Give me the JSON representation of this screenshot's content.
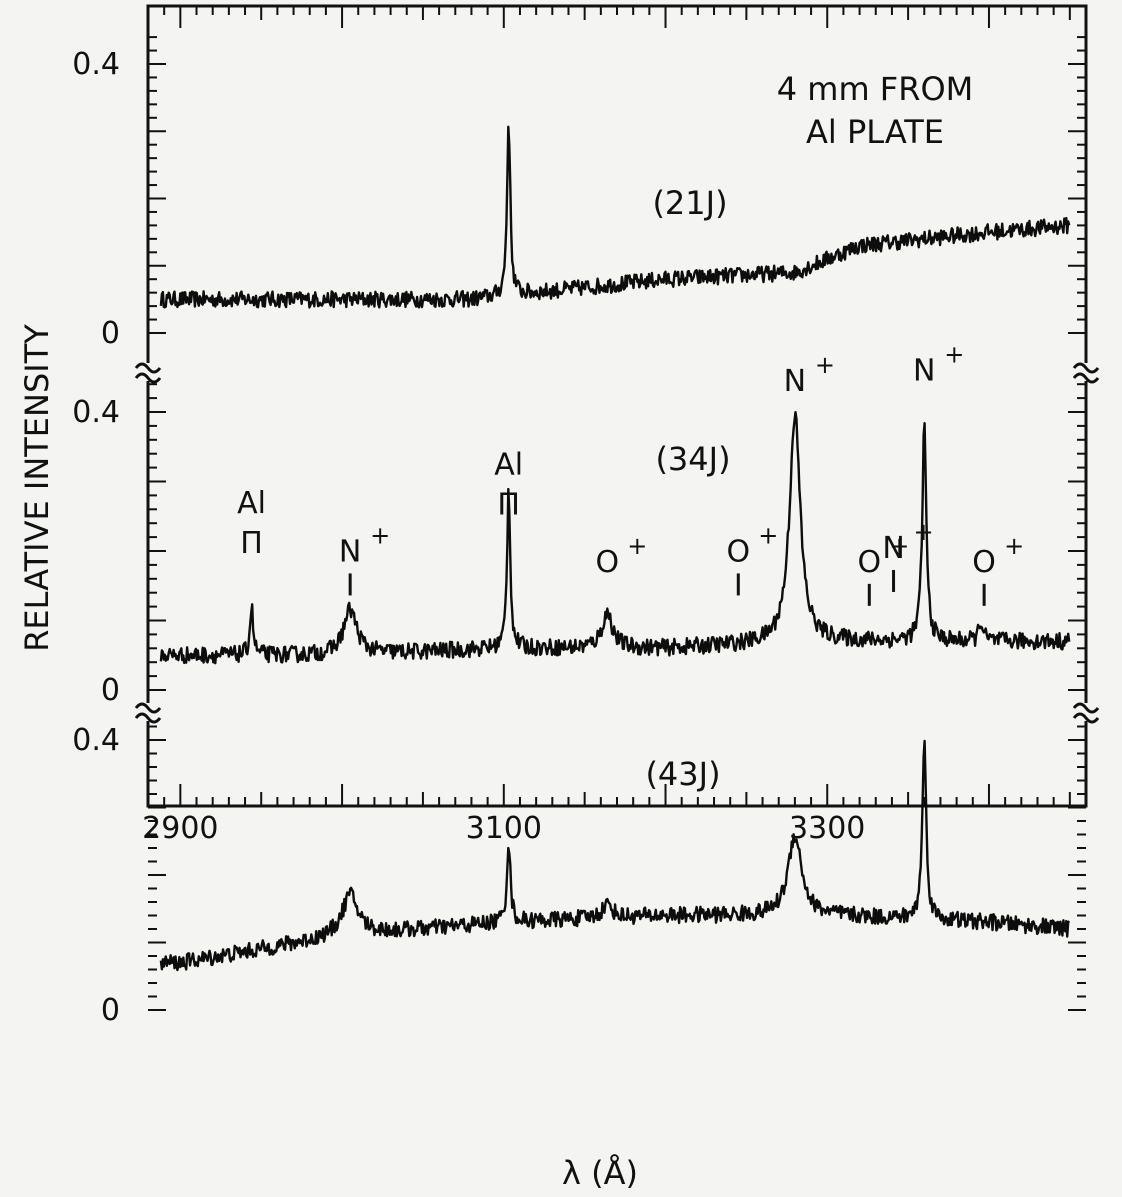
{
  "chart_data": {
    "type": "line",
    "title": "",
    "xlabel": "λ (Å)",
    "ylabel": "RELATIVE INTENSITY",
    "xlim": [
      2880,
      3460
    ],
    "x_ticks": [
      "2900",
      "3100",
      "3300"
    ],
    "x_tick_values": [
      2900,
      3100,
      3300
    ],
    "grid": false,
    "legend": "none",
    "annotation": [
      "4 mm FROM",
      "Al PLATE"
    ],
    "panels": [
      {
        "label": "(21J)",
        "ylim": [
          0,
          0.47
        ],
        "y_ticks": [
          "0",
          "0.4"
        ],
        "y_tick_values": [
          0,
          0.4
        ],
        "baseline": {
          "x": [
            2900,
            3000,
            3080,
            3120,
            3200,
            3280,
            3320,
            3400,
            3450
          ],
          "y": [
            0.05,
            0.05,
            0.05,
            0.06,
            0.08,
            0.09,
            0.13,
            0.15,
            0.16
          ]
        },
        "noise": 0.012,
        "peaks": [
          {
            "x": 3103,
            "height": 0.26,
            "width": 1.2
          }
        ],
        "line_labels": []
      },
      {
        "label": "(34J)",
        "ylim": [
          0,
          0.45
        ],
        "y_ticks": [
          "0",
          "0.4"
        ],
        "y_tick_values": [
          0,
          0.4
        ],
        "baseline": {
          "x": [
            2900,
            3000,
            3100,
            3200,
            3300,
            3400,
            3450
          ],
          "y": [
            0.05,
            0.05,
            0.06,
            0.06,
            0.07,
            0.07,
            0.07
          ]
        },
        "noise": 0.012,
        "peaks": [
          {
            "x": 2944,
            "height": 0.07,
            "width": 1.2
          },
          {
            "x": 3005,
            "height": 0.065,
            "width": 5
          },
          {
            "x": 3103,
            "height": 0.23,
            "width": 1.2
          },
          {
            "x": 3164,
            "height": 0.05,
            "width": 4
          },
          {
            "x": 3280,
            "height": 0.33,
            "width": 4
          },
          {
            "x": 3360,
            "height": 0.31,
            "width": 1.5
          },
          {
            "x": 3395,
            "height": 0.03,
            "width": 1.5
          }
        ],
        "line_labels": [
          {
            "x": 2944,
            "ion": "Al",
            "sup": "",
            "marker": "Π",
            "top": 0.255
          },
          {
            "x": 3005,
            "ion": "N",
            "sup": "+",
            "marker": "|",
            "top": 0.185
          },
          {
            "x": 3103,
            "ion": "Al",
            "sup": "",
            "marker": "Π",
            "top": 0.31
          },
          {
            "x": 3164,
            "ion": "O",
            "sup": "+",
            "marker": "",
            "top": 0.17
          },
          {
            "x": 3245,
            "ion": "O",
            "sup": "+",
            "marker": "|",
            "top": 0.185
          },
          {
            "x": 3280,
            "ion": "N",
            "sup": "+",
            "marker": "",
            "top": 0.43
          },
          {
            "x": 3326,
            "ion": "O",
            "sup": "+",
            "marker": "|",
            "top": 0.17
          },
          {
            "x": 3341,
            "ion": "N",
            "sup": "+",
            "marker": "|",
            "top": 0.19
          },
          {
            "x": 3360,
            "ion": "N",
            "sup": "+",
            "marker": "",
            "top": 0.445
          },
          {
            "x": 3397,
            "ion": "O",
            "sup": "+",
            "marker": "|",
            "top": 0.17
          }
        ]
      },
      {
        "label": "(43J)",
        "ylim": [
          0,
          0.45
        ],
        "y_ticks": [
          "0",
          "0.4"
        ],
        "y_tick_values": [
          0,
          0.4
        ],
        "baseline": {
          "x": [
            2900,
            2950,
            3000,
            3100,
            3200,
            3250,
            3300,
            3400,
            3450
          ],
          "y": [
            0.07,
            0.09,
            0.11,
            0.13,
            0.14,
            0.14,
            0.14,
            0.13,
            0.12
          ]
        },
        "noise": 0.012,
        "peaks": [
          {
            "x": 3005,
            "height": 0.06,
            "width": 6
          },
          {
            "x": 3103,
            "height": 0.12,
            "width": 1.3
          },
          {
            "x": 3164,
            "height": 0.02,
            "width": 4
          },
          {
            "x": 3280,
            "height": 0.12,
            "width": 5
          },
          {
            "x": 3360,
            "height": 0.26,
            "width": 1.5
          }
        ],
        "line_labels": []
      }
    ]
  }
}
